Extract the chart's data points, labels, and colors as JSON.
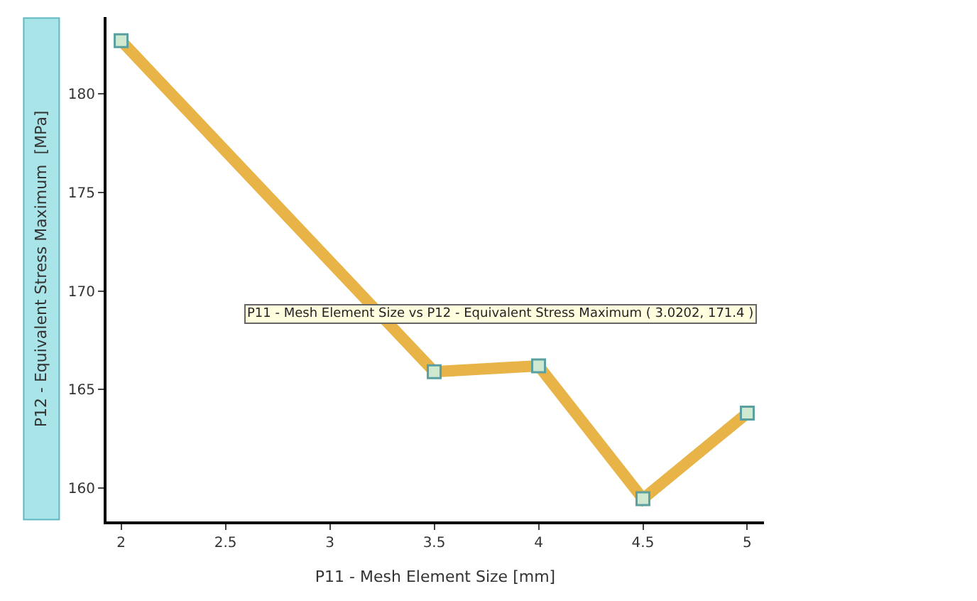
{
  "chart_data": {
    "type": "line",
    "xlabel": "P11 - Mesh Element Size [mm]",
    "ylabel": "P12 - Equivalent Stress Maximum  [MPa]",
    "x": [
      2,
      3.5,
      4,
      4.5,
      5
    ],
    "series": [
      {
        "color": "#e8b448",
        "values": [
          182.7,
          165.9,
          166.2,
          159.45,
          163.8
        ]
      }
    ],
    "xlim": [
      1.93,
      5.08
    ],
    "xticks": [
      2,
      2.5,
      3,
      3.5,
      4,
      4.5,
      5
    ],
    "ylim": [
      158.3,
      183.9
    ],
    "yticks": [
      160,
      165,
      170,
      175,
      180
    ],
    "marker": "square",
    "annotations": [
      "P11 - Mesh Element Size vs P12 - Equivalent Stress Maximum ( 3.0202, 171.4 )"
    ]
  }
}
